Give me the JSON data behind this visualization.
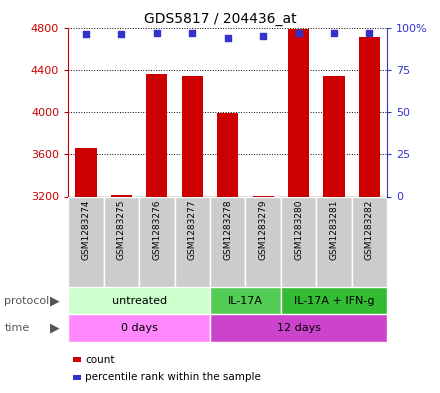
{
  "title": "GDS5817 / 204436_at",
  "samples": [
    "GSM1283274",
    "GSM1283275",
    "GSM1283276",
    "GSM1283277",
    "GSM1283278",
    "GSM1283279",
    "GSM1283280",
    "GSM1283281",
    "GSM1283282"
  ],
  "counts": [
    3655,
    3215,
    4360,
    4340,
    3995,
    3205,
    4790,
    4340,
    4710
  ],
  "percentiles": [
    96,
    96,
    97,
    97,
    94,
    95,
    97,
    97,
    97
  ],
  "ylim_left": [
    3200,
    4800
  ],
  "ylim_right": [
    0,
    100
  ],
  "yticks_left": [
    3200,
    3600,
    4000,
    4400,
    4800
  ],
  "yticks_right": [
    0,
    25,
    50,
    75,
    100
  ],
  "ytick_labels_right": [
    "0",
    "25",
    "50",
    "75",
    "100%"
  ],
  "bar_color": "#cc0000",
  "dot_color": "#3333cc",
  "protocol_groups": [
    {
      "label": "untreated",
      "start": 0,
      "end": 4,
      "color": "#ccffcc"
    },
    {
      "label": "IL-17A",
      "start": 4,
      "end": 6,
      "color": "#55cc55"
    },
    {
      "label": "IL-17A + IFN-g",
      "start": 6,
      "end": 9,
      "color": "#33bb33"
    }
  ],
  "time_groups": [
    {
      "label": "0 days",
      "start": 0,
      "end": 4,
      "color": "#ff88ff"
    },
    {
      "label": "12 days",
      "start": 4,
      "end": 9,
      "color": "#cc44cc"
    }
  ],
  "sample_bg_color": "#cccccc",
  "left_axis_color": "#cc0000",
  "right_axis_color": "#3333cc",
  "label_color_protocol": "#555555",
  "label_color_time": "#555555"
}
